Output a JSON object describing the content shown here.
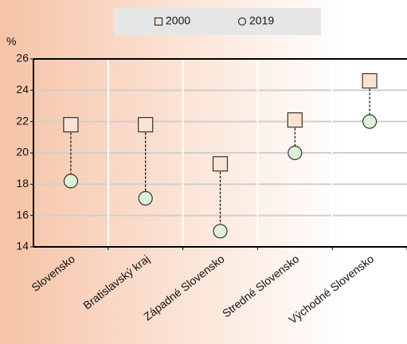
{
  "chart_data": {
    "type": "dot",
    "y_label": "%",
    "categories": [
      "Slovensko",
      "Bratislavský kraj",
      "Západné Slovensko",
      "Stredné Slovensko",
      "Východné Slovensko"
    ],
    "series": [
      {
        "name": "2000",
        "marker": "square",
        "color": "#fbe3d3",
        "values": [
          21.8,
          21.8,
          19.3,
          22.1,
          24.6
        ]
      },
      {
        "name": "2019",
        "marker": "circle",
        "color": "#dcf1d6",
        "values": [
          18.2,
          17.1,
          15.0,
          20.0,
          22.0
        ]
      }
    ],
    "connectors": true,
    "ylim": [
      14,
      26
    ],
    "yticks": [
      14,
      16,
      18,
      20,
      22,
      24,
      26
    ],
    "grid": true
  }
}
